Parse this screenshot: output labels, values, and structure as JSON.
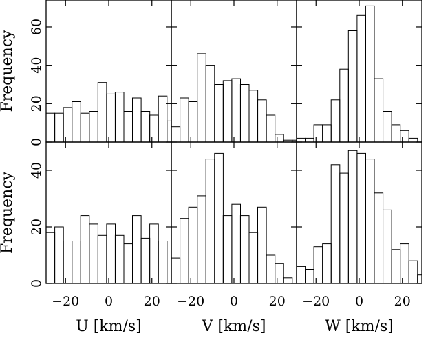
{
  "chart_data": [
    {
      "type": "histogram",
      "panel": "top-U",
      "xlabel": "",
      "ylabel": "Frequency",
      "ylim": [
        0,
        74
      ],
      "xlim": [
        -29,
        29
      ],
      "bin_width": 4,
      "bin_start": -29,
      "values": [
        15,
        15,
        18,
        21,
        15,
        16,
        31,
        25,
        26,
        16,
        23,
        16,
        14,
        24,
        11
      ],
      "x_ticks": [],
      "y_ticks": [
        "0",
        "20",
        "40",
        "60"
      ]
    },
    {
      "type": "histogram",
      "panel": "top-V",
      "xlabel": "",
      "ylabel": "",
      "ylim": [
        0,
        74
      ],
      "xlim": [
        -29,
        29
      ],
      "bin_width": 4,
      "bin_start": -29,
      "values": [
        8,
        23,
        21,
        46,
        40,
        30,
        32,
        33,
        30,
        27,
        22,
        14,
        4,
        1,
        1
      ],
      "x_ticks": [],
      "y_ticks": []
    },
    {
      "type": "histogram",
      "panel": "top-W",
      "xlabel": "",
      "ylabel": "",
      "ylim": [
        0,
        74
      ],
      "xlim": [
        -29,
        29
      ],
      "bin_width": 4,
      "bin_start": -29,
      "values": [
        2,
        2,
        9,
        9,
        22,
        38,
        58,
        66,
        71,
        33,
        16,
        9,
        6,
        2,
        0
      ],
      "x_ticks": [],
      "y_ticks": []
    },
    {
      "type": "histogram",
      "panel": "bottom-U",
      "xlabel": "U [km/s]",
      "ylabel": "Frequency",
      "ylim": [
        0,
        50
      ],
      "xlim": [
        -29,
        29
      ],
      "bin_width": 4,
      "bin_start": -29,
      "values": [
        18,
        20,
        15,
        15,
        24,
        21,
        17,
        21,
        17,
        14,
        24,
        16,
        21,
        15,
        15
      ],
      "x_ticks": [
        "−20",
        "0",
        "20"
      ],
      "y_ticks": [
        "0",
        "20",
        "40"
      ]
    },
    {
      "type": "histogram",
      "panel": "bottom-V",
      "xlabel": "V [km/s]",
      "ylabel": "",
      "ylim": [
        0,
        50
      ],
      "xlim": [
        -29,
        29
      ],
      "bin_width": 4,
      "bin_start": -29,
      "values": [
        9,
        23,
        27,
        31,
        44,
        46,
        24,
        28,
        24,
        18,
        27,
        10,
        7,
        2,
        0
      ],
      "x_ticks": [
        "−20",
        "0",
        "20"
      ],
      "y_ticks": []
    },
    {
      "type": "histogram",
      "panel": "bottom-W",
      "xlabel": "W [km/s]",
      "ylabel": "",
      "ylim": [
        0,
        50
      ],
      "xlim": [
        -29,
        29
      ],
      "bin_width": 4,
      "bin_start": -29,
      "values": [
        6,
        5,
        13,
        14,
        42,
        39,
        47,
        46,
        44,
        32,
        26,
        12,
        14,
        8,
        3
      ],
      "x_ticks": [
        "−20",
        "0",
        "20"
      ],
      "y_ticks": []
    }
  ]
}
